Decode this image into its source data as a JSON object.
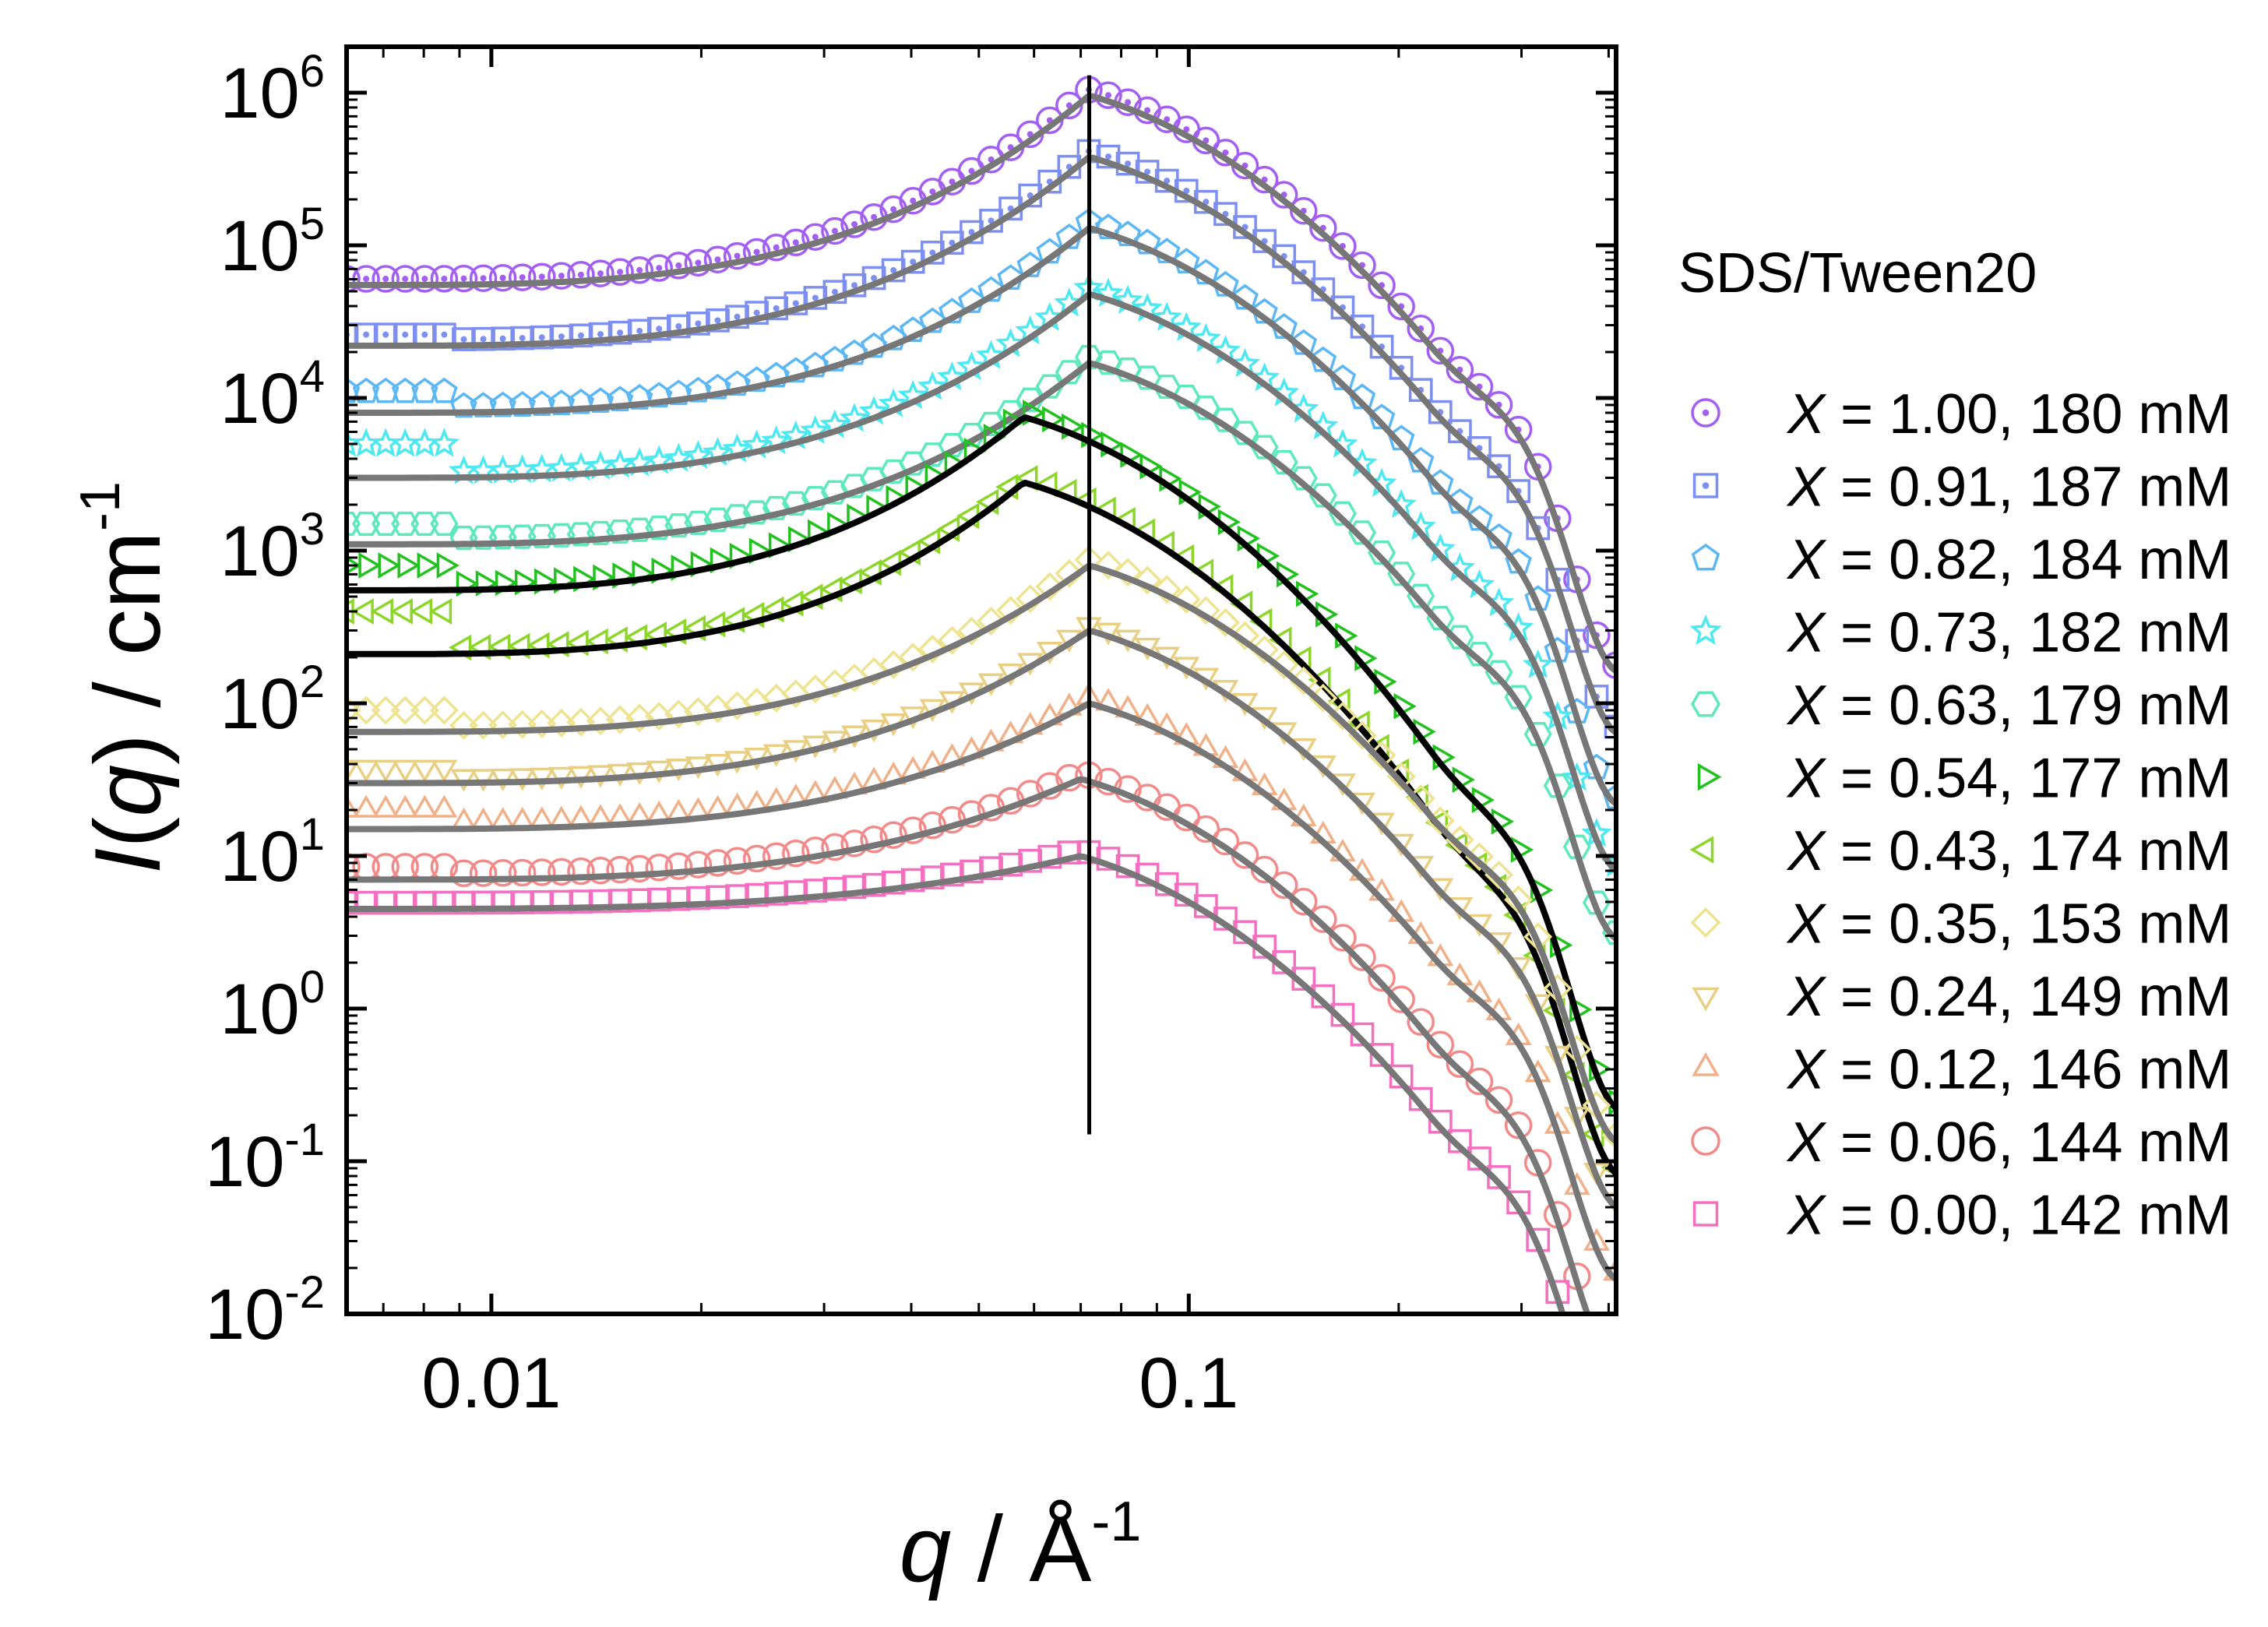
{
  "chart_data": {
    "type": "scatter",
    "x_scale": "log",
    "y_scale": "log",
    "xlim": [
      0.0062,
      0.41
    ],
    "ylim": [
      0.01,
      2000000
    ],
    "x_ticks": [
      {
        "value": 0.01,
        "label": "0.01"
      },
      {
        "value": 0.1,
        "label": "0.1"
      }
    ],
    "y_ticks": [
      {
        "value": 1000000,
        "base": "10",
        "exp": "6"
      },
      {
        "value": 100000,
        "base": "10",
        "exp": "5"
      },
      {
        "value": 10000,
        "base": "10",
        "exp": "4"
      },
      {
        "value": 1000,
        "base": "10",
        "exp": "3"
      },
      {
        "value": 100,
        "base": "10",
        "exp": "2"
      },
      {
        "value": 10,
        "base": "10",
        "exp": "1"
      },
      {
        "value": 1,
        "base": "10",
        "exp": "0"
      },
      {
        "value": 0.1,
        "base": "10",
        "exp": "-1"
      },
      {
        "value": 0.01,
        "base": "10",
        "exp": "-2"
      }
    ],
    "xlabel": {
      "var": "q",
      "sep": " / ",
      "unit": "Å",
      "exp": "-1"
    },
    "ylabel": {
      "var": "I",
      "open": "(",
      "arg": "q",
      "close": ")",
      "sep": " / ",
      "unit": "cm",
      "exp": "-1"
    },
    "vertical_line_x": 0.072,
    "vertical_line_y_range": [
      0.15,
      1300000
    ],
    "legend_title": "SDS/Tween20",
    "legend_position": "right",
    "series": [
      {
        "var": "X",
        "text": " = 1.00, 180 mM",
        "color": "#a35ef2",
        "marker": "circle-dot",
        "fit_color": "#777777",
        "low": 55000,
        "peak": 960000,
        "peak_q": 0.072,
        "data_low": 60000
      },
      {
        "var": "X",
        "text": " = 0.91, 187 mM",
        "color": "#7d8ff0",
        "marker": "square-dot",
        "fit_color": "#777777",
        "low": 22000,
        "peak": 380000,
        "peak_q": 0.072,
        "data_low": 26000
      },
      {
        "var": "X",
        "text": " = 0.82, 184 mM",
        "color": "#5cb7f5",
        "marker": "pentagon",
        "fit_color": "#777777",
        "low": 8000,
        "peak": 130000,
        "peak_q": 0.072,
        "data_low": 11000
      },
      {
        "var": "X",
        "text": " = 0.73, 182 mM",
        "color": "#4ee8f0",
        "marker": "star",
        "fit_color": "#777777",
        "low": 3000,
        "peak": 48000,
        "peak_q": 0.072,
        "data_low": 5000
      },
      {
        "var": "X",
        "text": " = 0.63, 179 mM",
        "color": "#5de8be",
        "marker": "hexagon",
        "fit_color": "#777777",
        "low": 1100,
        "peak": 17000,
        "peak_q": 0.072,
        "data_low": 1500
      },
      {
        "var": "X",
        "text": " = 0.54, 177 mM",
        "color": "#22c21e",
        "marker": "triangle-right",
        "fit_color": "#000000",
        "low": 550,
        "peak": 7500,
        "peak_q": 0.058,
        "data_low": 800
      },
      {
        "var": "X",
        "text": " = 0.43, 174 mM",
        "color": "#8cd62a",
        "marker": "triangle-left",
        "fit_color": "#000000",
        "low": 210,
        "peak": 2800,
        "peak_q": 0.058,
        "data_low": 400
      },
      {
        "var": "X",
        "text": " = 0.35, 153 mM",
        "color": "#ede390",
        "marker": "diamond",
        "fit_color": "#777777",
        "low": 65,
        "peak": 800,
        "peak_q": 0.072,
        "data_low": 90
      },
      {
        "var": "X",
        "text": " = 0.24, 149 mM",
        "color": "#e8cf84",
        "marker": "triangle-down",
        "fit_color": "#777777",
        "low": 30,
        "peak": 300,
        "peak_q": 0.072,
        "data_low": 38
      },
      {
        "var": "X",
        "text": " = 0.12, 146 mM",
        "color": "#f0b088",
        "marker": "triangle-up",
        "fit_color": "#777777",
        "low": 15,
        "peak": 100,
        "peak_q": 0.072,
        "data_low": 20
      },
      {
        "var": "X",
        "text": " = 0.06, 144 mM",
        "color": "#f28a8a",
        "marker": "circle",
        "fit_color": "#777777",
        "low": 7,
        "peak": 32,
        "peak_q": 0.07,
        "data_low": 8.5
      },
      {
        "var": "X",
        "text": " = 0.00, 142 mM",
        "color": "#f56fc0",
        "marker": "square",
        "fit_color": "#777777",
        "low": 4.5,
        "peak": 10,
        "peak_q": 0.07,
        "data_low": 4.6
      }
    ]
  }
}
